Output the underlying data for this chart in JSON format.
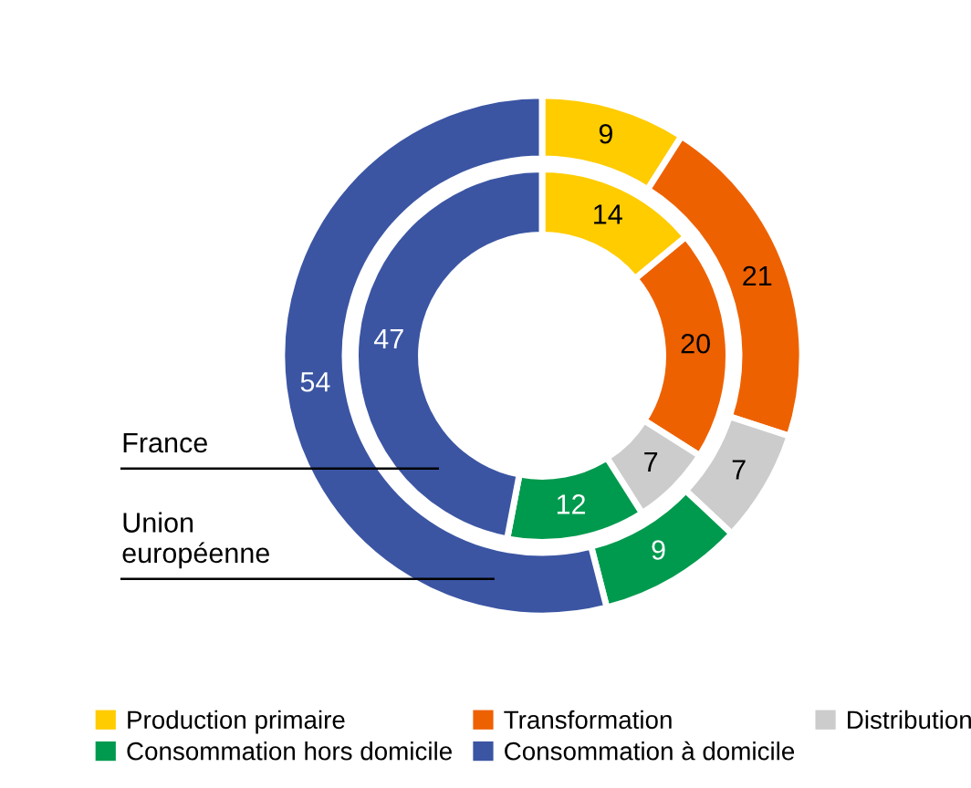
{
  "chart_data": {
    "type": "donut",
    "categories": [
      "Production primaire",
      "Transformation",
      "Distribution",
      "Consommation hors domicile",
      "Consommation à domicile"
    ],
    "colors": [
      "#ffcc00",
      "#ee6100",
      "#cccccc",
      "#009a4e",
      "#3b55a3"
    ],
    "series": [
      {
        "name": "France",
        "values": [
          14,
          20,
          7,
          12,
          47
        ]
      },
      {
        "name": "Union européenne",
        "values": [
          9,
          21,
          7,
          9,
          54
        ]
      }
    ],
    "data_labels": true,
    "legend": "bottom"
  }
}
